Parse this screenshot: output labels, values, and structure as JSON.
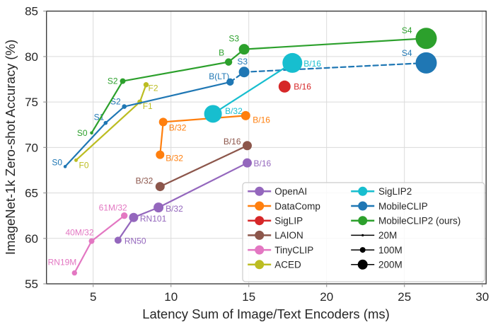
{
  "chart_data": {
    "type": "scatter",
    "title": "",
    "xlabel": "Latency Sum of Image/Text Encoders (ms)",
    "ylabel": "ImageNet-1k Zero-shot Accuracy (%)",
    "xlim": [
      2,
      30.25
    ],
    "ylim": [
      55,
      85
    ],
    "xticks": [
      5,
      10,
      15,
      20,
      25,
      30
    ],
    "yticks": [
      55,
      60,
      65,
      70,
      75,
      80,
      85
    ],
    "grid": true,
    "legend_position": "lower right",
    "theme": {
      "background": "#ffffff",
      "grid_color": "#dadada",
      "spine_color": "#303030",
      "text_color": "#262626",
      "legend_border": "#cccccc"
    },
    "series": [
      {
        "name": "OpenAI",
        "color": "#9467bd",
        "points": [
          {
            "label": "RN50",
            "x": 6.6,
            "y": 59.8,
            "r": 5,
            "anchor": "start",
            "ldx": 9,
            "ldy": 5
          },
          {
            "label": "RN101",
            "x": 7.6,
            "y": 62.3,
            "r": 6.5,
            "anchor": "start",
            "ldx": 9,
            "ldy": 6
          },
          {
            "label": "B/32",
            "x": 9.2,
            "y": 63.4,
            "r": 7,
            "anchor": "start",
            "ldx": 10,
            "ldy": 6
          },
          {
            "label": "B/16",
            "x": 14.9,
            "y": 68.3,
            "r": 6.5,
            "anchor": "start",
            "ldx": 9,
            "ldy": 5
          }
        ]
      },
      {
        "name": "DataComp",
        "color": "#ff7f0e",
        "points": [
          {
            "label": "B/32",
            "x": 9.3,
            "y": 69.2,
            "r": 6,
            "anchor": "start",
            "ldx": 8,
            "ldy": 9
          },
          {
            "label": "B/32",
            "x": 9.5,
            "y": 72.8,
            "r": 6,
            "anchor": "start",
            "ldx": 8,
            "ldy": 12
          },
          {
            "label": "B/16",
            "x": 14.8,
            "y": 73.5,
            "r": 6.5,
            "anchor": "start",
            "ldx": 10,
            "ldy": 10
          }
        ]
      },
      {
        "name": "SigLIP",
        "color": "#d62728",
        "points": [
          {
            "label": "B/16",
            "x": 17.3,
            "y": 76.7,
            "r": 8.5,
            "anchor": "start",
            "ldx": 13,
            "ldy": 4
          }
        ]
      },
      {
        "name": "LAION",
        "color": "#8c564b",
        "points": [
          {
            "label": "B/32",
            "x": 9.3,
            "y": 65.7,
            "r": 6.5,
            "anchor": "end",
            "ldx": -10,
            "ldy": -4
          },
          {
            "label": "B/16",
            "x": 14.9,
            "y": 70.2,
            "r": 6.5,
            "anchor": "end",
            "ldx": -9,
            "ldy": -2
          }
        ]
      },
      {
        "name": "TinyCLIP",
        "color": "#e377c2",
        "points": [
          {
            "label": "RN19M",
            "x": 3.8,
            "y": 56.2,
            "r": 3.7,
            "anchor": "end",
            "ldx": 3,
            "ldy": -11
          },
          {
            "label": "40M/32",
            "x": 4.9,
            "y": 59.7,
            "r": 4,
            "anchor": "end",
            "ldx": 3,
            "ldy": -8
          },
          {
            "label": "61M/32",
            "x": 7.0,
            "y": 62.5,
            "r": 4.7,
            "anchor": "end",
            "ldx": 4,
            "ldy": -7
          }
        ]
      },
      {
        "name": "ACED",
        "color": "#bcbd22",
        "points": [
          {
            "label": "F0",
            "x": 3.9,
            "y": 68.6,
            "r": 2.5,
            "anchor": "start",
            "ldx": 4,
            "ldy": 11
          },
          {
            "label": "F1",
            "x": 8.0,
            "y": 75.0,
            "r": 3.5,
            "anchor": "start",
            "ldx": 4,
            "ldy": 10
          },
          {
            "label": "F2",
            "x": 8.4,
            "y": 76.9,
            "r": 3.7,
            "anchor": "start",
            "ldx": 3,
            "ldy": 9
          }
        ]
      },
      {
        "name": "MobileCLIP",
        "color": "#1f77b4",
        "line_segments": [
          {
            "style": "solid",
            "from": 0,
            "to": 3
          },
          {
            "style": "dashed",
            "from": 3,
            "to": 5
          }
        ],
        "points": [
          {
            "label": "S0",
            "x": 3.2,
            "y": 67.9,
            "r": 2.3,
            "anchor": "end",
            "ldx": -4,
            "ldy": -2
          },
          {
            "label": "S1",
            "x": 5.8,
            "y": 72.7,
            "r": 2.8,
            "anchor": "end",
            "ldx": -2,
            "ldy": -4
          },
          {
            "label": "S2",
            "x": 7.0,
            "y": 74.5,
            "r": 3.3,
            "anchor": "end",
            "ldx": -5,
            "ldy": -3
          },
          {
            "label": "B(LT)",
            "x": 13.8,
            "y": 77.2,
            "r": 5.2,
            "anchor": "end",
            "ldx": -1,
            "ldy": -4
          },
          {
            "label": "S3",
            "x": 14.7,
            "y": 78.3,
            "r": 7.5,
            "anchor": "end",
            "ldx": 5,
            "ldy": -11
          },
          {
            "label": "S4",
            "x": 26.4,
            "y": 79.3,
            "r": 15,
            "anchor": "end",
            "ldx": -20,
            "ldy": -10
          }
        ]
      },
      {
        "name": "MobileCLIP2 (ours)",
        "color": "#2ca02c",
        "points": [
          {
            "label": "S0",
            "x": 4.9,
            "y": 71.6,
            "r": 2.3,
            "anchor": "end",
            "ldx": -6,
            "ldy": 4
          },
          {
            "label": "S2",
            "x": 6.9,
            "y": 77.3,
            "r": 4,
            "anchor": "end",
            "ldx": -7,
            "ldy": 4
          },
          {
            "label": "B",
            "x": 13.7,
            "y": 79.4,
            "r": 5.2,
            "anchor": "end",
            "ldx": -6,
            "ldy": -9
          },
          {
            "label": "S3",
            "x": 14.7,
            "y": 80.8,
            "r": 7.5,
            "anchor": "end",
            "ldx": -7,
            "ldy": -11
          },
          {
            "label": "S4",
            "x": 26.4,
            "y": 82.0,
            "r": 15,
            "anchor": "end",
            "ldx": -20,
            "ldy": -7
          }
        ]
      },
      {
        "name": "SigLIP2",
        "color": "#17becf",
        "points": [
          {
            "label": "B/32",
            "x": 12.7,
            "y": 73.7,
            "r": 12.5,
            "anchor": "start",
            "ldx": 17,
            "ldy": 0
          },
          {
            "label": "B/16",
            "x": 17.8,
            "y": 79.3,
            "r": 14,
            "anchor": "start",
            "ldx": 16,
            "ldy": 5
          }
        ]
      }
    ],
    "legend": {
      "columns": [
        [
          {
            "label": "OpenAI",
            "color": "#9467bd",
            "type": "series"
          },
          {
            "label": "DataComp",
            "color": "#ff7f0e",
            "type": "series"
          },
          {
            "label": "SigLIP",
            "color": "#d62728",
            "type": "series"
          },
          {
            "label": "LAION",
            "color": "#8c564b",
            "type": "series"
          },
          {
            "label": "TinyCLIP",
            "color": "#e377c2",
            "type": "series"
          },
          {
            "label": "ACED",
            "color": "#bcbd22",
            "type": "series"
          }
        ],
        [
          {
            "label": "SigLIP2",
            "color": "#17becf",
            "type": "series"
          },
          {
            "label": "MobileCLIP",
            "color": "#1f77b4",
            "type": "series"
          },
          {
            "label": "MobileCLIP2 (ours)",
            "color": "#2ca02c",
            "type": "series"
          },
          {
            "label": "20M",
            "color": "#000000",
            "type": "size",
            "radius": 1.6
          },
          {
            "label": "100M",
            "color": "#000000",
            "type": "size",
            "radius": 4
          },
          {
            "label": "200M",
            "color": "#000000",
            "type": "size",
            "radius": 7
          }
        ]
      ]
    }
  }
}
